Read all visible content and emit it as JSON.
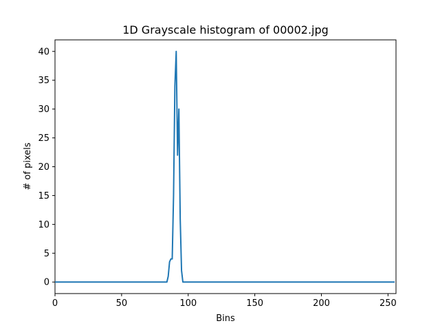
{
  "chart_data": {
    "type": "line",
    "title": "1D Grayscale histogram of 00002.jpg",
    "xlabel": "Bins",
    "ylabel": "# of pixels",
    "xlim": [
      0,
      256
    ],
    "ylim": [
      -2,
      42
    ],
    "xticks": [
      0,
      50,
      100,
      150,
      200,
      250
    ],
    "yticks": [
      0,
      5,
      10,
      15,
      20,
      25,
      30,
      35,
      40
    ],
    "grid": false,
    "legend": "none",
    "series": [
      {
        "color": "#1f77b4",
        "x": [
          0,
          84,
          85,
          86,
          87,
          88,
          89,
          90,
          91,
          92,
          93,
          94,
          95,
          96,
          255
        ],
        "y": [
          0,
          0,
          1,
          3.5,
          4,
          4,
          15,
          34,
          40,
          22,
          30,
          11,
          2,
          0,
          0
        ]
      }
    ]
  }
}
